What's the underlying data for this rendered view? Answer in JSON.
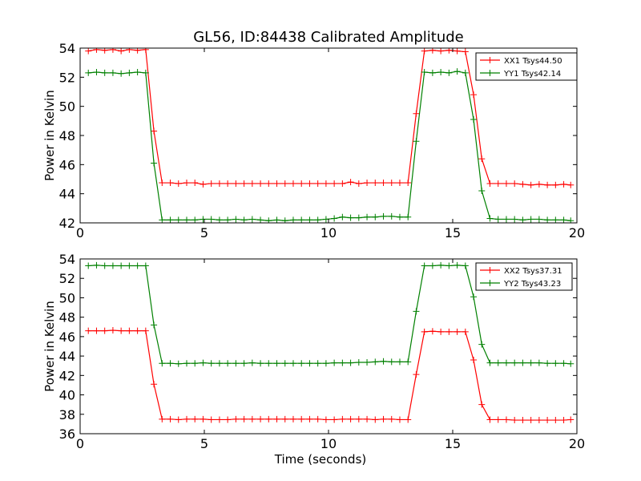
{
  "chart_data": [
    {
      "type": "line",
      "title": "GL56, ID:84438 Calibrated Amplitude",
      "xlabel": "",
      "ylabel": "Power in Kelvin",
      "xlim": [
        0,
        20
      ],
      "ylim": [
        42,
        54
      ],
      "xticks": [
        0,
        5,
        10,
        15,
        20
      ],
      "yticks": [
        42,
        44,
        46,
        48,
        50,
        52,
        54
      ],
      "grid": false,
      "legend": "top-right",
      "x": [
        0.33,
        0.66,
        0.99,
        1.32,
        1.65,
        1.98,
        2.31,
        2.64,
        2.97,
        3.3,
        3.63,
        3.96,
        4.29,
        4.62,
        4.95,
        5.28,
        5.61,
        5.94,
        6.27,
        6.6,
        6.93,
        7.26,
        7.59,
        7.92,
        8.25,
        8.58,
        8.91,
        9.24,
        9.57,
        9.9,
        10.23,
        10.56,
        10.89,
        11.22,
        11.55,
        11.88,
        12.21,
        12.54,
        12.87,
        13.2,
        13.53,
        13.86,
        14.19,
        14.52,
        14.85,
        15.18,
        15.51,
        15.84,
        16.17,
        16.5,
        16.83,
        17.16,
        17.49,
        17.82,
        18.15,
        18.48,
        18.81,
        19.14,
        19.47,
        19.75
      ],
      "series": [
        {
          "name": "XX1 Tsys44.50",
          "color": "#ff0000",
          "values": [
            53.8,
            53.9,
            53.85,
            53.9,
            53.8,
            53.9,
            53.85,
            53.9,
            48.3,
            44.75,
            44.75,
            44.7,
            44.75,
            44.75,
            44.65,
            44.7,
            44.7,
            44.7,
            44.7,
            44.7,
            44.7,
            44.7,
            44.7,
            44.7,
            44.7,
            44.7,
            44.7,
            44.7,
            44.7,
            44.7,
            44.7,
            44.7,
            44.8,
            44.7,
            44.75,
            44.75,
            44.75,
            44.75,
            44.75,
            44.75,
            49.5,
            53.8,
            53.85,
            53.8,
            53.85,
            53.8,
            53.75,
            50.8,
            46.4,
            44.7,
            44.7,
            44.7,
            44.7,
            44.65,
            44.6,
            44.65,
            44.6,
            44.6,
            44.65,
            44.6
          ]
        },
        {
          "name": "YY1 Tsys42.14",
          "color": "#008000",
          "values": [
            52.3,
            52.35,
            52.3,
            52.3,
            52.25,
            52.3,
            52.35,
            52.3,
            46.1,
            42.2,
            42.2,
            42.2,
            42.2,
            42.2,
            42.25,
            42.25,
            42.2,
            42.2,
            42.25,
            42.2,
            42.25,
            42.2,
            42.15,
            42.2,
            42.15,
            42.2,
            42.2,
            42.2,
            42.2,
            42.25,
            42.3,
            42.4,
            42.35,
            42.35,
            42.4,
            42.4,
            42.45,
            42.45,
            42.4,
            42.4,
            47.6,
            52.35,
            52.3,
            52.35,
            52.3,
            52.4,
            52.3,
            49.1,
            44.2,
            42.3,
            42.25,
            42.25,
            42.25,
            42.2,
            42.25,
            42.25,
            42.2,
            42.2,
            42.2,
            42.15
          ]
        }
      ]
    },
    {
      "type": "line",
      "title": "",
      "xlabel": "Time (seconds)",
      "ylabel": "Power in Kelvin",
      "xlim": [
        0,
        20
      ],
      "ylim": [
        36,
        54
      ],
      "xticks": [
        0,
        5,
        10,
        15,
        20
      ],
      "yticks": [
        36,
        38,
        40,
        42,
        44,
        46,
        48,
        50,
        52,
        54
      ],
      "grid": false,
      "legend": "top-right",
      "x": [
        0.33,
        0.66,
        0.99,
        1.32,
        1.65,
        1.98,
        2.31,
        2.64,
        2.97,
        3.3,
        3.63,
        3.96,
        4.29,
        4.62,
        4.95,
        5.28,
        5.61,
        5.94,
        6.27,
        6.6,
        6.93,
        7.26,
        7.59,
        7.92,
        8.25,
        8.58,
        8.91,
        9.24,
        9.57,
        9.9,
        10.23,
        10.56,
        10.89,
        11.22,
        11.55,
        11.88,
        12.21,
        12.54,
        12.87,
        13.2,
        13.53,
        13.86,
        14.19,
        14.52,
        14.85,
        15.18,
        15.51,
        15.84,
        16.17,
        16.5,
        16.83,
        17.16,
        17.49,
        17.82,
        18.15,
        18.48,
        18.81,
        19.14,
        19.47,
        19.75
      ],
      "series": [
        {
          "name": "XX2 Tsys37.31",
          "color": "#ff0000",
          "values": [
            46.6,
            46.6,
            46.6,
            46.65,
            46.6,
            46.6,
            46.6,
            46.6,
            41.1,
            37.5,
            37.5,
            37.45,
            37.5,
            37.5,
            37.5,
            37.45,
            37.45,
            37.45,
            37.5,
            37.5,
            37.5,
            37.5,
            37.5,
            37.5,
            37.5,
            37.5,
            37.5,
            37.5,
            37.5,
            37.45,
            37.45,
            37.5,
            37.5,
            37.5,
            37.5,
            37.45,
            37.5,
            37.5,
            37.45,
            37.45,
            42.1,
            46.5,
            46.55,
            46.5,
            46.5,
            46.5,
            46.5,
            43.6,
            39.0,
            37.45,
            37.45,
            37.45,
            37.4,
            37.4,
            37.4,
            37.4,
            37.4,
            37.4,
            37.4,
            37.45
          ]
        },
        {
          "name": "YY2 Tsys43.23",
          "color": "#008000",
          "values": [
            53.3,
            53.35,
            53.3,
            53.3,
            53.3,
            53.3,
            53.3,
            53.3,
            47.2,
            43.25,
            43.25,
            43.2,
            43.25,
            43.25,
            43.3,
            43.25,
            43.25,
            43.25,
            43.25,
            43.25,
            43.3,
            43.25,
            43.25,
            43.25,
            43.25,
            43.25,
            43.25,
            43.25,
            43.25,
            43.25,
            43.3,
            43.3,
            43.3,
            43.35,
            43.35,
            43.4,
            43.45,
            43.4,
            43.4,
            43.4,
            48.6,
            53.3,
            53.3,
            53.35,
            53.3,
            53.35,
            53.3,
            50.1,
            45.2,
            43.3,
            43.3,
            43.3,
            43.3,
            43.3,
            43.3,
            43.3,
            43.25,
            43.25,
            43.25,
            43.2
          ]
        }
      ]
    }
  ]
}
